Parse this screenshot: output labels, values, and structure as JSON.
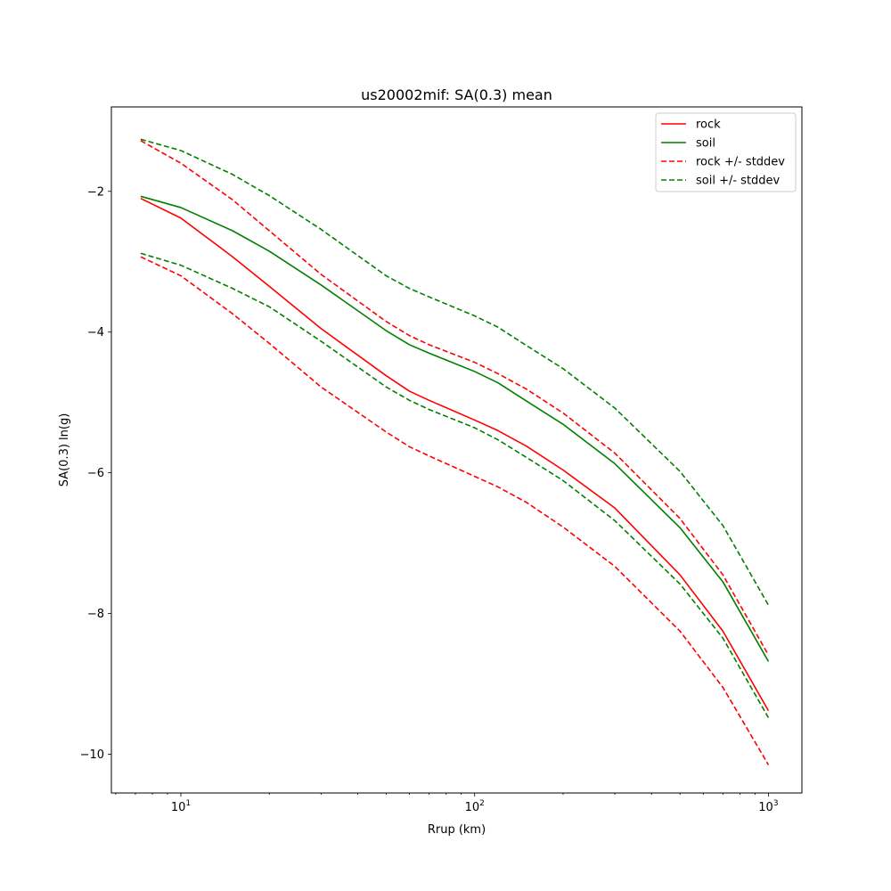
{
  "chart_data": {
    "type": "line",
    "title": "us20002mif: SA(0.3) mean",
    "xlabel": "Rrup (km)",
    "ylabel": "SA(0.3) ln(g)",
    "xscale": "log",
    "xlim": [
      5.8,
      1300
    ],
    "ylim": [
      -10.55,
      -0.8
    ],
    "xticks": [
      {
        "value": 10,
        "base": "10",
        "exp": "1"
      },
      {
        "value": 100,
        "base": "10",
        "exp": "2"
      },
      {
        "value": 1000,
        "base": "10",
        "exp": "3"
      }
    ],
    "yticks": [
      -2,
      -4,
      -6,
      -8,
      -10
    ],
    "ytick_labels": [
      "−2",
      "−4",
      "−6",
      "−8",
      "−10"
    ],
    "grid": false,
    "legend_position": "upper right",
    "x": [
      7.3,
      10,
      15,
      20,
      30,
      50,
      60,
      70,
      100,
      120,
      150,
      200,
      300,
      500,
      700,
      1000
    ],
    "series": [
      {
        "name": "rock",
        "color": "#ff0000",
        "dashed": false,
        "values": [
          -2.1,
          -2.38,
          -2.93,
          -3.35,
          -3.95,
          -4.62,
          -4.84,
          -4.97,
          -5.25,
          -5.4,
          -5.62,
          -5.96,
          -6.5,
          -7.45,
          -8.25,
          -9.38
        ]
      },
      {
        "name": "soil",
        "color": "#008000",
        "dashed": false,
        "values": [
          -2.07,
          -2.23,
          -2.56,
          -2.85,
          -3.33,
          -3.98,
          -4.18,
          -4.3,
          -4.56,
          -4.72,
          -4.98,
          -5.31,
          -5.87,
          -6.78,
          -7.55,
          -8.68
        ]
      },
      {
        "name": "rock +/- stddev",
        "color": "#ff0000",
        "dashed": true,
        "legend": true,
        "values": [
          -1.28,
          -1.6,
          -2.12,
          -2.56,
          -3.18,
          -3.85,
          -4.05,
          -4.18,
          -4.43,
          -4.59,
          -4.81,
          -5.15,
          -5.72,
          -6.65,
          -7.45,
          -8.59
        ]
      },
      {
        "name": "rock +/- stddev",
        "color": "#ff0000",
        "dashed": true,
        "legend": false,
        "values": [
          -2.93,
          -3.2,
          -3.74,
          -4.16,
          -4.78,
          -5.42,
          -5.63,
          -5.76,
          -6.05,
          -6.2,
          -6.42,
          -6.77,
          -7.33,
          -8.25,
          -9.05,
          -10.15
        ]
      },
      {
        "name": "soil +/- stddev",
        "color": "#008000",
        "dashed": true,
        "legend": true,
        "values": [
          -1.26,
          -1.42,
          -1.76,
          -2.06,
          -2.54,
          -3.2,
          -3.38,
          -3.5,
          -3.77,
          -3.93,
          -4.19,
          -4.52,
          -5.08,
          -5.98,
          -6.75,
          -7.88
        ]
      },
      {
        "name": "soil +/- stddev",
        "color": "#008000",
        "dashed": true,
        "legend": false,
        "values": [
          -2.88,
          -3.05,
          -3.38,
          -3.64,
          -4.13,
          -4.78,
          -4.97,
          -5.1,
          -5.36,
          -5.53,
          -5.78,
          -6.11,
          -6.68,
          -7.58,
          -8.35,
          -9.48
        ]
      }
    ]
  }
}
